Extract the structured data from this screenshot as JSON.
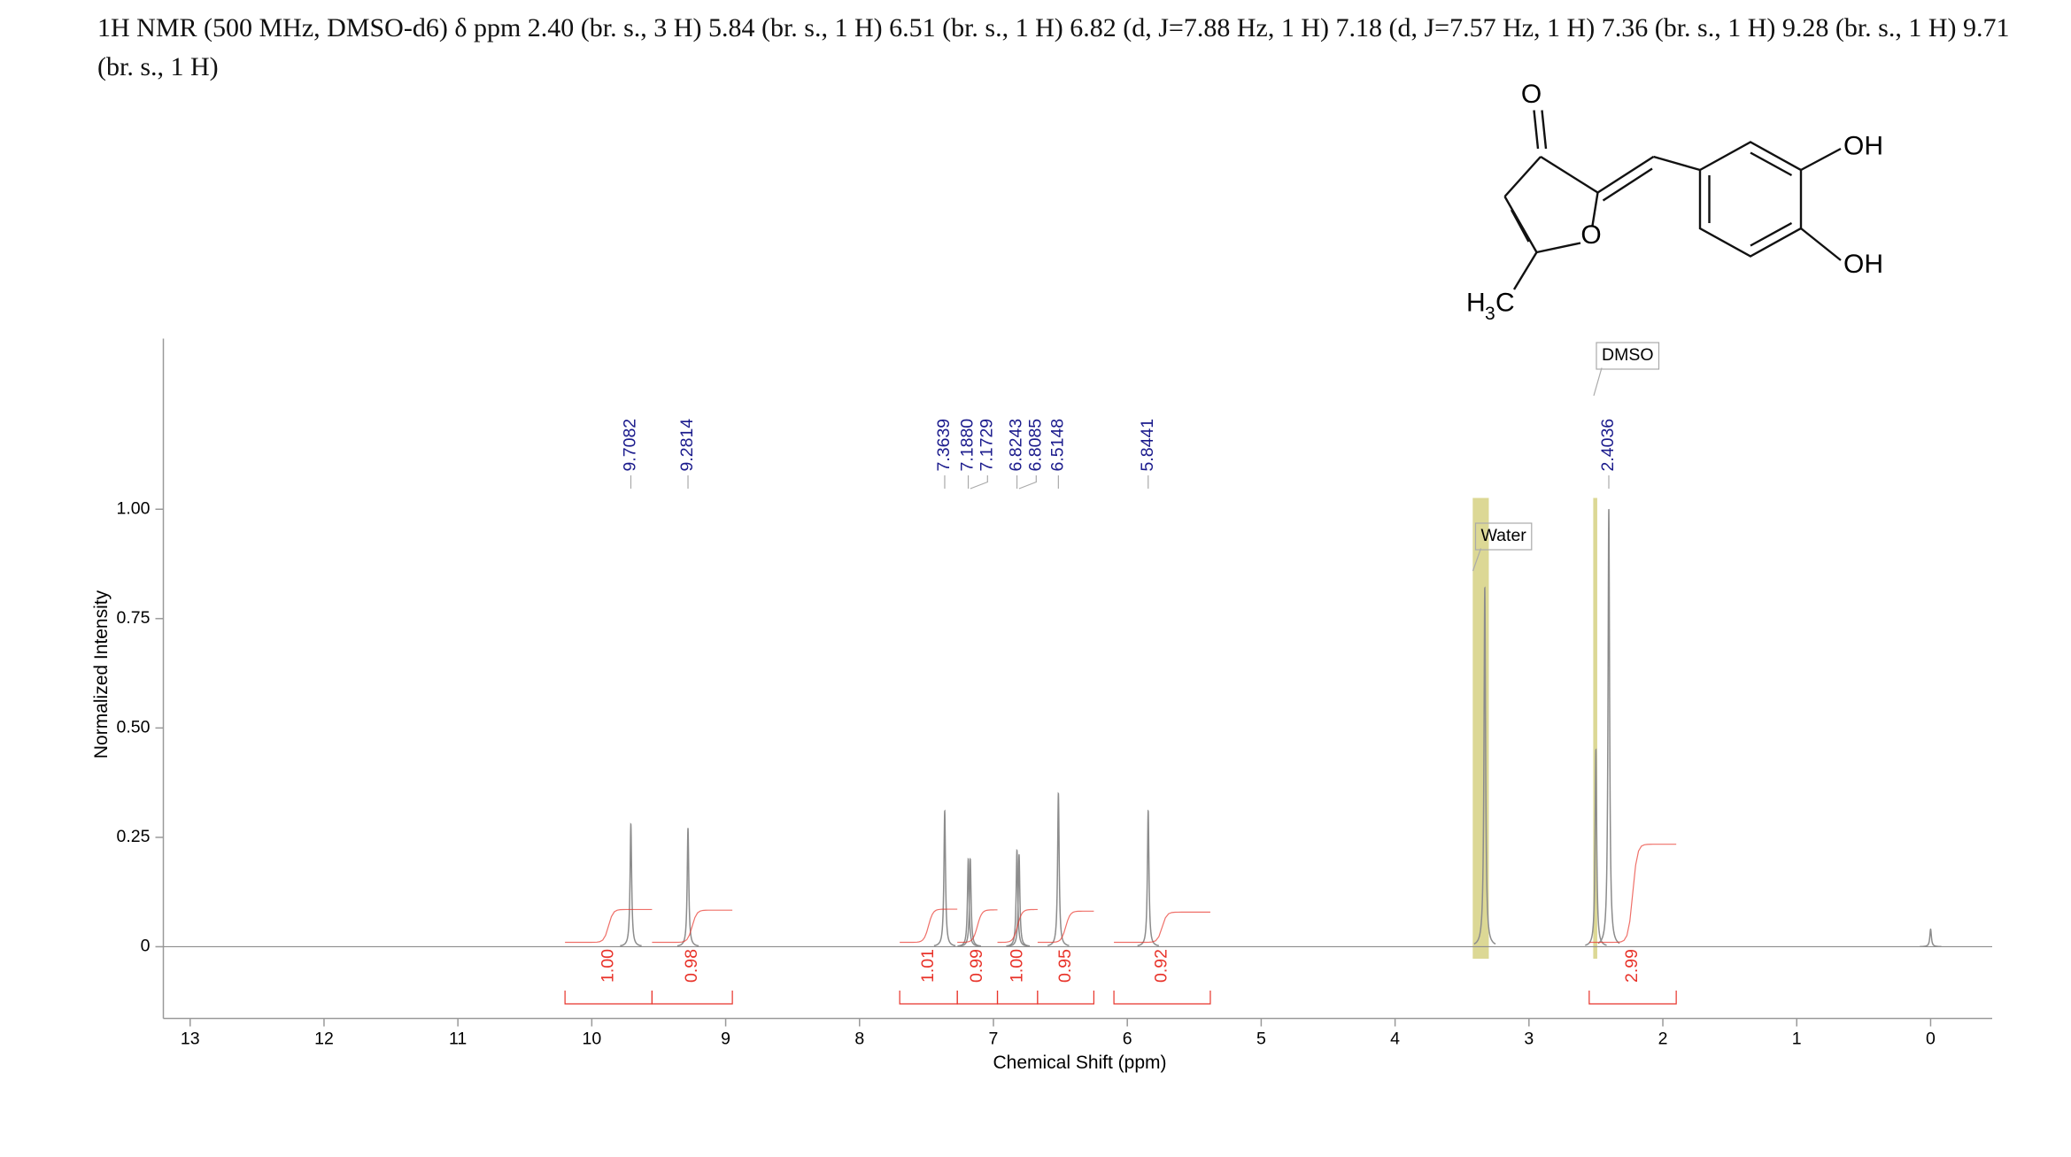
{
  "chart_data": {
    "type": "nmr",
    "title": "1H NMR (500 MHz, DMSO-d6) δ ppm 2.40 (br. s., 3 H) 5.84 (br. s., 1 H) 6.51 (br. s., 1 H) 6.82 (d, J=7.88 Hz, 1 H) 7.18 (d, J=7.57 Hz, 1 H) 7.36 (br. s., 1 H) 9.28 (br. s., 1 H) 9.71 (br. s., 1 H)",
    "x_label": "Chemical Shift (ppm)",
    "y_label": "Normalized Intensity",
    "xlim": [
      13.2,
      -0.46
    ],
    "ylim": [
      -0.164,
      1.39
    ],
    "xticks": [
      13,
      12,
      11,
      10,
      9,
      8,
      7,
      6,
      5,
      4,
      3,
      2,
      1,
      0
    ],
    "yticks": [
      0,
      0.25,
      {
        "value": 0.5,
        "label": "0.50"
      },
      0.75,
      {
        "value": 1,
        "label": "1.00"
      }
    ],
    "line_color": "#8c8c8c",
    "label_color": "#1a1a8c",
    "integral_color": "#e8332a",
    "peaks": {
      "x": [
        9.7082,
        9.2814,
        7.3639,
        7.188,
        7.1729,
        6.8243,
        6.8085,
        6.5148,
        5.8441,
        2.4036
      ],
      "x_labels": [
        "9.7082",
        "9.2814",
        "7.3639",
        "7.1880",
        "7.1729",
        "6.8243",
        "6.8085",
        "6.5148",
        "5.8441",
        "2.4036"
      ],
      "y": [
        0.28,
        0.27,
        0.31,
        0.2,
        0.2,
        0.22,
        0.21,
        0.35,
        0.31,
        1.0
      ]
    },
    "other_peaks": {
      "x": [
        3.33,
        2.5,
        0.0
      ],
      "y": [
        0.82,
        0.45,
        0.04
      ]
    },
    "integrals": {
      "ranges": [
        [
          10.2,
          9.55
        ],
        [
          9.55,
          8.95
        ],
        [
          7.7,
          7.27
        ],
        [
          7.27,
          6.97
        ],
        [
          6.97,
          6.67
        ],
        [
          6.67,
          6.25
        ],
        [
          6.1,
          5.38
        ],
        [
          2.55,
          1.9
        ]
      ],
      "values": [
        1.0,
        0.98,
        1.01,
        0.99,
        1.0,
        0.95,
        0.92,
        2.99
      ],
      "value_labels": [
        "1.00",
        "0.98",
        "1.01",
        "0.99",
        "1.00",
        "0.95",
        "0.92",
        "2.99"
      ]
    },
    "annotations": [
      {
        "text": "Water",
        "band": [
          3.42,
          3.3
        ],
        "band_color": "#d8d48a"
      },
      {
        "text": "DMSO",
        "band": [
          2.52,
          2.49
        ],
        "band_color": "#d8d48a"
      }
    ],
    "structure": {
      "atoms": [
        "O",
        "O",
        "OH",
        "OH"
      ],
      "methyl": [
        "H",
        "3",
        "C"
      ]
    }
  }
}
